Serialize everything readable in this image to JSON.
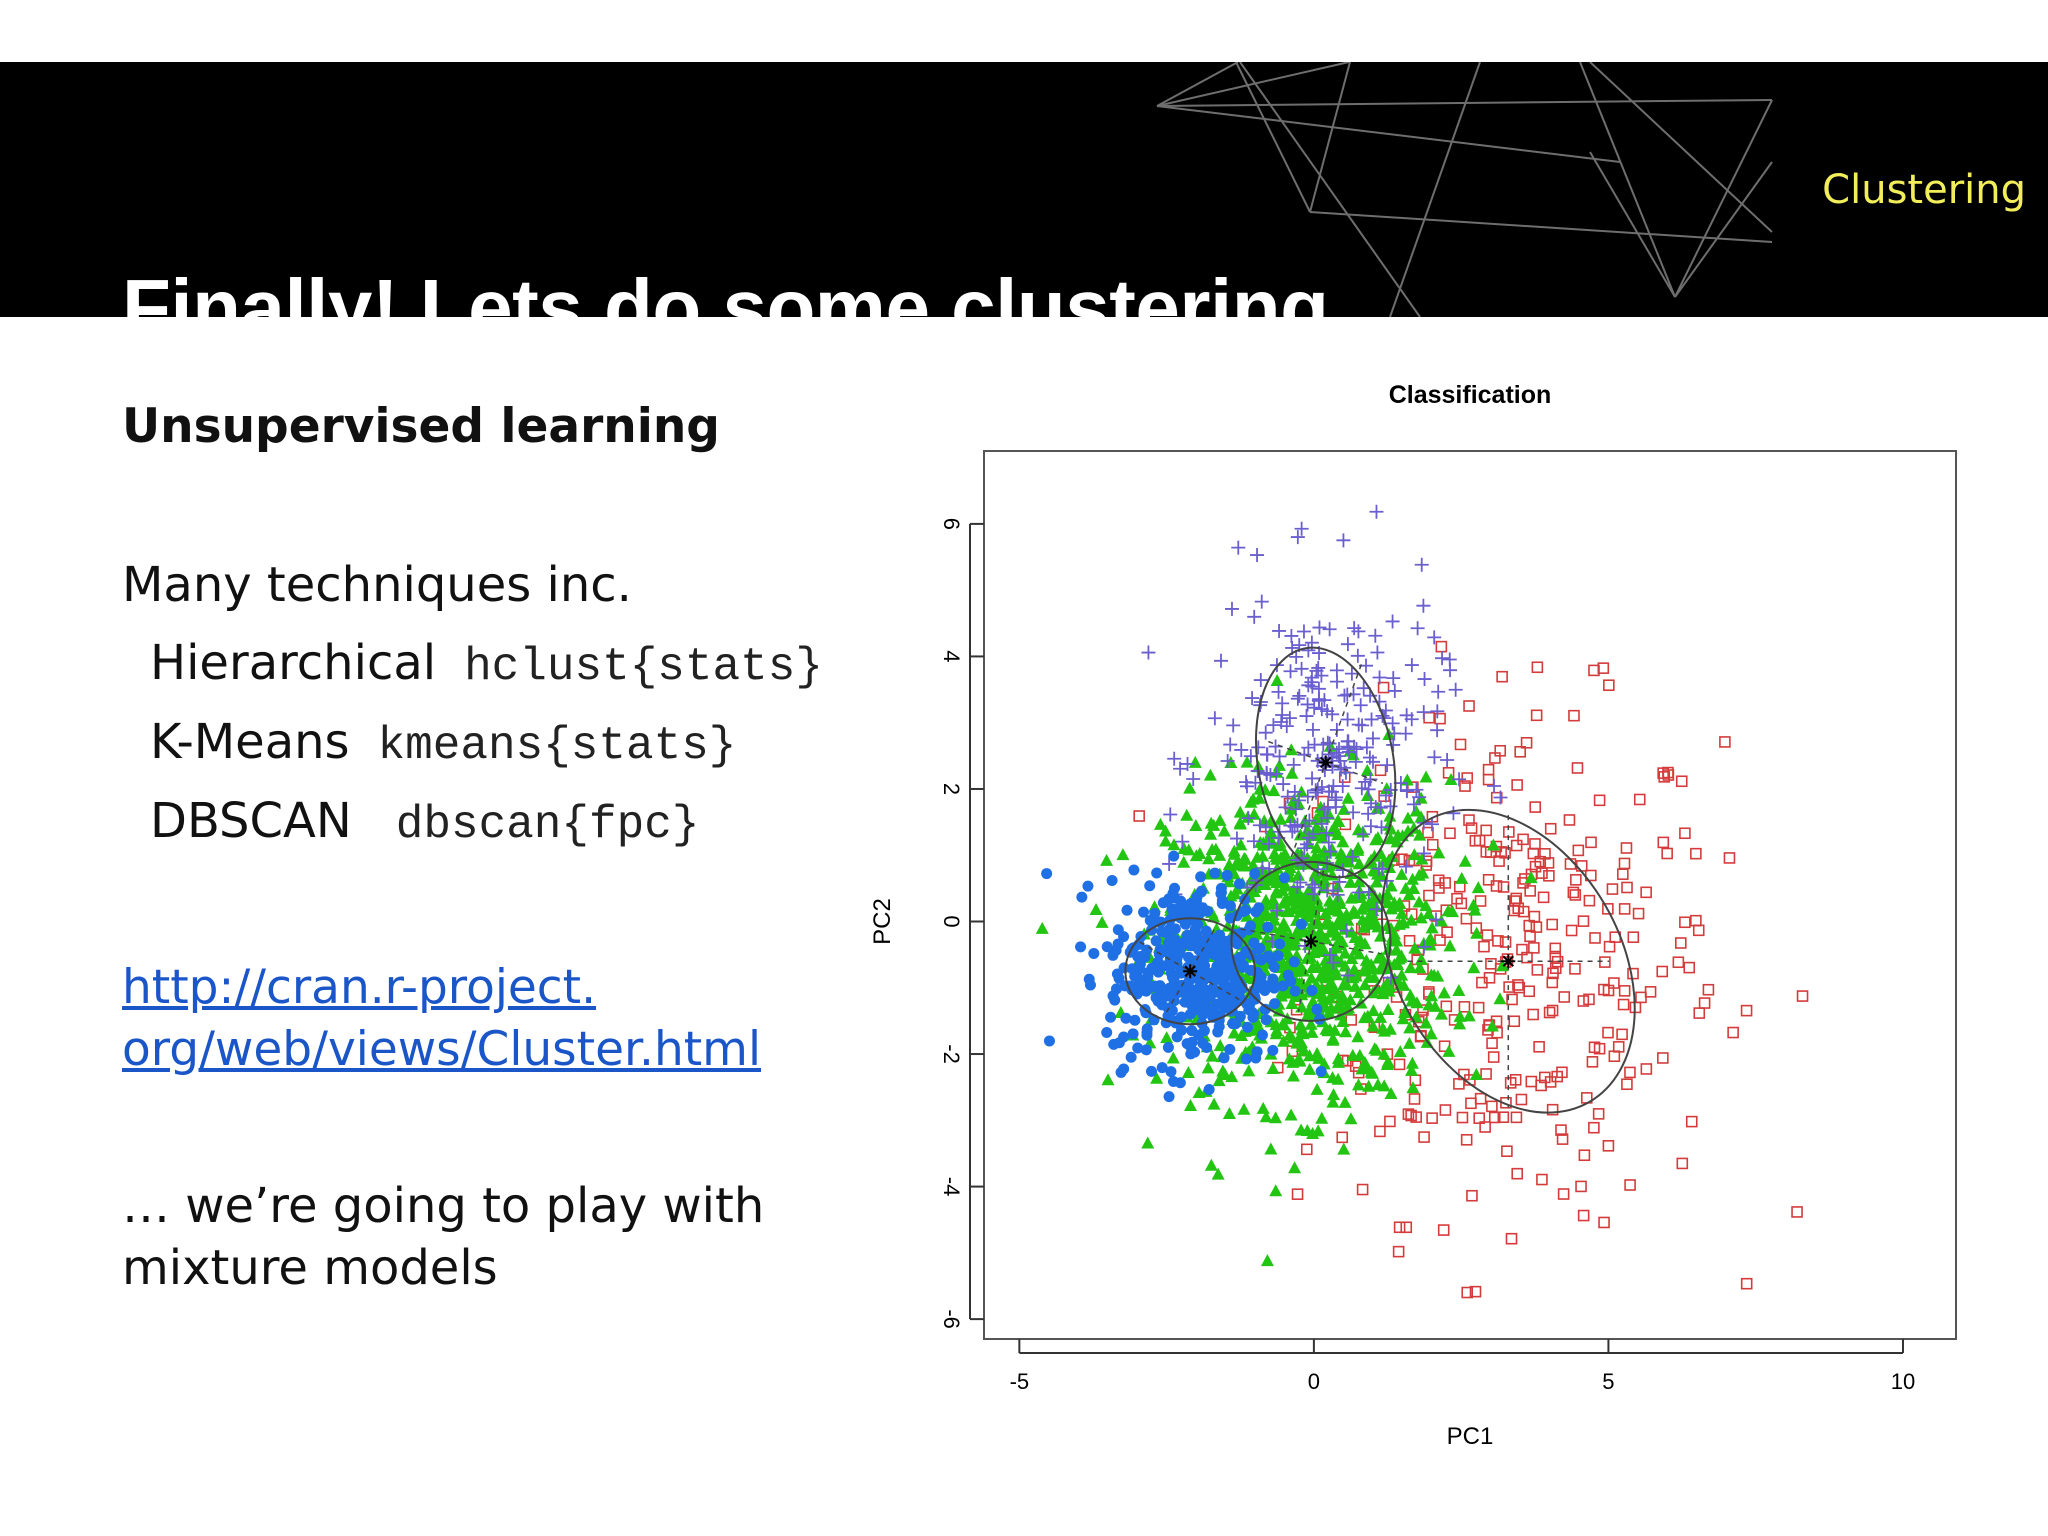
{
  "header": {
    "title": "Finally! Lets do some clustering",
    "section": "Clustering"
  },
  "content": {
    "subheading": "Unsupervised learning",
    "intro": "Many techniques inc.",
    "techniques": [
      {
        "name": "Hierarchical",
        "code": "hclust{stats}"
      },
      {
        "name": "K-Means",
        "code": "kmeans{stats}"
      },
      {
        "name": "DBSCAN",
        "code": "dbscan{fpc}"
      }
    ],
    "link_line1": "http://cran.r-project.",
    "link_line2": "org/web/views/Cluster.html",
    "outro_line1": "… we’re going to play with",
    "outro_line2": "mixture models"
  },
  "chart_data": {
    "type": "scatter",
    "title": "Classification",
    "xlabel": "PC1",
    "ylabel": "PC2",
    "xlim": [
      -5.6,
      10.9
    ],
    "ylim": [
      -6.3,
      7.1
    ],
    "xticks": [
      -5,
      0,
      5,
      10
    ],
    "yticks": [
      -6,
      -4,
      -2,
      0,
      2,
      4,
      6
    ],
    "grid": false,
    "series": [
      {
        "marker": "circle",
        "color": "#1f6fe5",
        "center": [
          -2.0,
          -0.75
        ],
        "spread": [
          0.75,
          0.7
        ],
        "count": 420
      },
      {
        "marker": "triangle",
        "color": "#22c512",
        "center": [
          -0.1,
          -0.3
        ],
        "spread": [
          1.2,
          1.2
        ],
        "count": 900
      },
      {
        "marker": "plus",
        "color": "#6a5fcf",
        "center": [
          0.2,
          2.4
        ],
        "spread": [
          1.0,
          1.3
        ],
        "count": 280
      },
      {
        "marker": "square",
        "color": "#d43c3c",
        "center": [
          3.3,
          -0.6
        ],
        "spread": [
          1.8,
          1.9
        ],
        "count": 330
      }
    ],
    "cluster_centers": [
      [
        -2.1,
        -0.75
      ],
      [
        -0.05,
        -0.3
      ],
      [
        0.2,
        2.4
      ],
      [
        3.3,
        -0.6
      ]
    ]
  }
}
